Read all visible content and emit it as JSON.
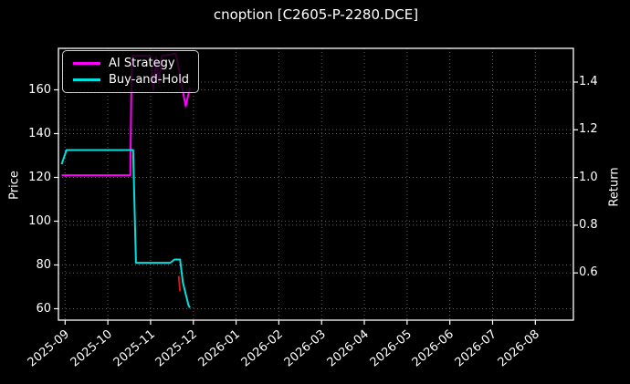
{
  "colors": {
    "background": "#000000",
    "text": "#ffffff",
    "spine": "#ffffff",
    "grid": "#5a5a5a",
    "ai_strategy": "#ff00ff",
    "buy_and_hold": "#00e0e0",
    "trade_marker": "#dd1111",
    "legend_border": "#d0d0d0"
  },
  "chart_data": {
    "type": "line",
    "title": "cnoption [C2605-P-2280.DCE]",
    "left_axis": {
      "label": "Price",
      "ticks": [
        60,
        80,
        100,
        120,
        140,
        160
      ],
      "range": [
        54.5,
        179.5
      ]
    },
    "right_axis": {
      "label": "Return",
      "ticks": [
        0.6,
        0.8,
        1.0,
        1.2,
        1.4
      ],
      "range": [
        0.4,
        1.55
      ]
    },
    "x_axis": {
      "ticks": [
        "2025-09",
        "2025-10",
        "2025-11",
        "2025-12",
        "2026-01",
        "2026-02",
        "2026-03",
        "2026-04",
        "2026-05",
        "2026-06",
        "2026-07",
        "2026-08"
      ],
      "label_rotation_deg": -40
    },
    "grid": {
      "on": true,
      "style": "dotted",
      "color": "#5a5a5a"
    },
    "legend": {
      "position": "upper-left",
      "entries": [
        "AI Strategy",
        "Buy-and-Hold"
      ]
    },
    "series": [
      {
        "name": "AI Strategy",
        "color": "#ff00ff",
        "axis": "price",
        "points": [
          [
            "2025-08-29",
            121
          ],
          [
            "2025-10-17",
            121
          ],
          [
            "2025-10-18",
            175.5
          ],
          [
            "2025-11-01",
            175.5
          ],
          [
            "2025-11-03",
            160
          ],
          [
            "2025-11-05",
            175
          ],
          [
            "2025-11-07",
            163
          ],
          [
            "2025-11-09",
            175.5
          ],
          [
            "2025-11-19",
            176.5
          ],
          [
            "2025-11-26",
            152.5
          ],
          [
            "2025-11-29",
            161
          ]
        ]
      },
      {
        "name": "Buy-and-Hold",
        "color": "#00e0e0",
        "axis": "price",
        "points": [
          [
            "2025-08-29",
            126
          ],
          [
            "2025-09-02",
            132.5
          ],
          [
            "2025-10-19",
            132.5
          ],
          [
            "2025-10-21",
            81
          ],
          [
            "2025-11-15",
            81
          ],
          [
            "2025-11-18",
            82.5
          ],
          [
            "2025-11-22",
            82.5
          ],
          [
            "2025-11-24",
            72
          ],
          [
            "2025-11-28",
            61.5
          ],
          [
            "2025-11-29",
            60.5
          ]
        ]
      },
      {
        "name": "trade-marker",
        "color": "#dd1111",
        "axis": "price",
        "points": [
          [
            "2025-11-21",
            75
          ],
          [
            "2025-11-22",
            68
          ]
        ]
      }
    ]
  }
}
